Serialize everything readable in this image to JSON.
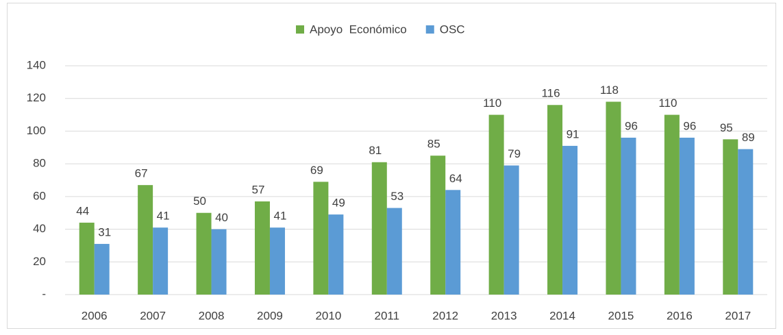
{
  "chart_data": {
    "type": "bar",
    "categories": [
      "2006",
      "2007",
      "2008",
      "2009",
      "2010",
      "2011",
      "2012",
      "2013",
      "2014",
      "2015",
      "2016",
      "2017"
    ],
    "series": [
      {
        "name": "Apoyo  Económico",
        "color": "#70ad47",
        "values": [
          44,
          67,
          50,
          57,
          69,
          81,
          85,
          110,
          116,
          118,
          110,
          95
        ]
      },
      {
        "name": "OSC",
        "color": "#5b9bd5",
        "values": [
          31,
          41,
          40,
          41,
          49,
          53,
          64,
          79,
          91,
          96,
          96,
          89
        ]
      }
    ],
    "ylim": [
      0,
      140
    ],
    "yticks": [
      {
        "value": 0,
        "label": "-"
      },
      20,
      40,
      60,
      80,
      100,
      120,
      140
    ],
    "grid": true,
    "legend": "top"
  }
}
